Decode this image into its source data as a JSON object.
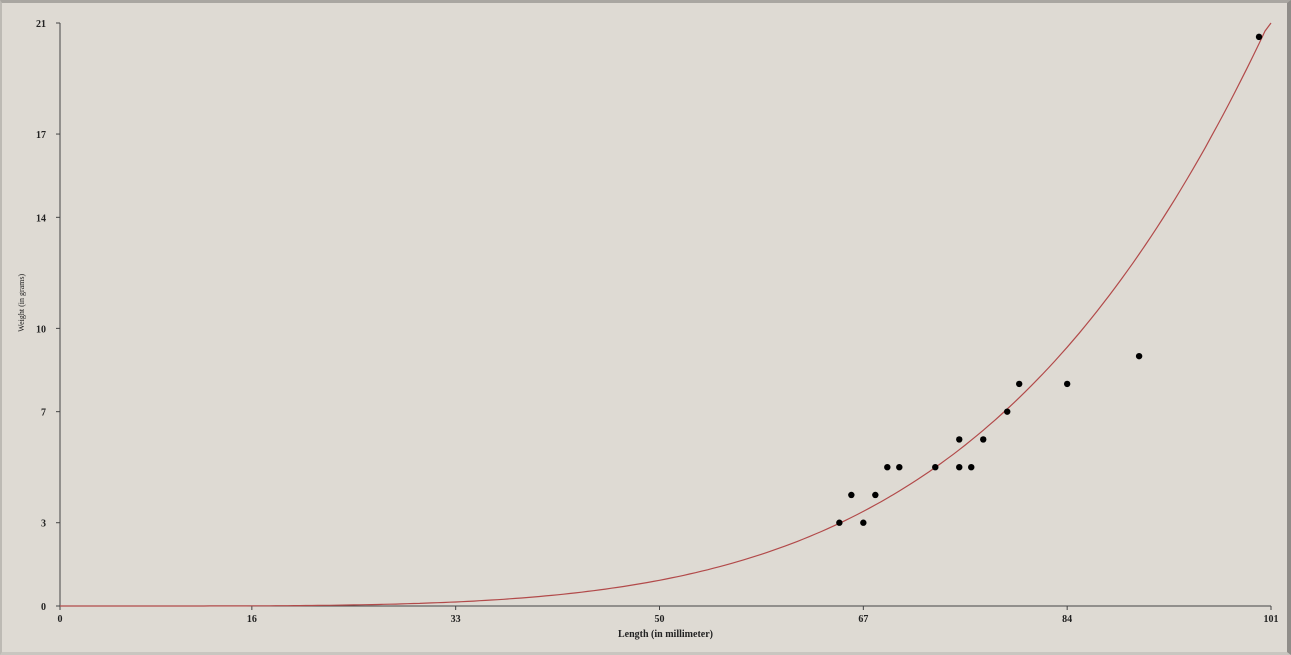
{
  "chart_data": {
    "type": "scatter",
    "title": "",
    "xlabel": "Length (in millimeter)",
    "ylabel": "Weight (in grams)",
    "xlim": [
      0,
      101
    ],
    "ylim": [
      0,
      21
    ],
    "x_ticks": [
      "0",
      "16",
      "33",
      "50",
      "67",
      "84",
      "101"
    ],
    "y_ticks": [
      "0",
      "3",
      "7",
      "10",
      "14",
      "17",
      "21"
    ],
    "grid": false,
    "legend": "none",
    "colors": {
      "points": "#000000",
      "curve": "#b24a4a",
      "background": "#dedad3",
      "axis": "#444444"
    },
    "series": [
      {
        "type": "scatter",
        "x": [
          65,
          66,
          67,
          68,
          69,
          70,
          73,
          75,
          75,
          76,
          77,
          79,
          80,
          84,
          90,
          100
        ],
        "y": [
          3.0,
          4.0,
          3.0,
          4.0,
          5.0,
          5.0,
          5.0,
          5.0,
          6.0,
          5.0,
          6.0,
          7.0,
          8.0,
          8.0,
          9.0,
          20.5
        ]
      },
      {
        "type": "line",
        "model": "power",
        "coefficient": 2.55e-08,
        "exponent": 4.45
      }
    ]
  }
}
